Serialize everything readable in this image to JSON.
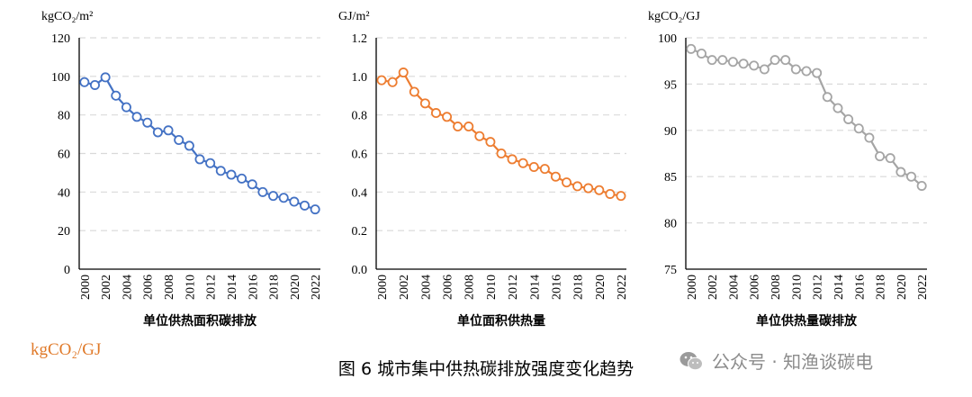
{
  "caption": "图 6 城市集中供热碳排放强度变化趋势",
  "stray_unit": "kgCO₂/GJ",
  "watermark": {
    "text": "公众号 · 知渔谈碳电",
    "icon": "wechat-icon"
  },
  "chart_data": [
    {
      "type": "line",
      "unit": "kgCO₂/m²",
      "xlabel": "单位供热面积碳排放",
      "ylim": [
        0,
        120
      ],
      "yticks": [
        "0",
        "20",
        "40",
        "60",
        "80",
        "100",
        "120"
      ],
      "categories": [
        "2000",
        "2001",
        "2002",
        "2003",
        "2004",
        "2005",
        "2006",
        "2007",
        "2008",
        "2009",
        "2010",
        "2011",
        "2012",
        "2013",
        "2014",
        "2015",
        "2016",
        "2017",
        "2018",
        "2019",
        "2020",
        "2021",
        "2022"
      ],
      "xticks": [
        "2000",
        "2002",
        "2004",
        "2006",
        "2008",
        "2010",
        "2012",
        "2014",
        "2016",
        "2018",
        "2020",
        "2022"
      ],
      "series": [
        {
          "values": [
            97,
            95.5,
            99.5,
            90,
            84,
            79,
            76,
            71,
            72,
            67,
            64,
            57,
            55,
            51,
            49,
            47,
            44,
            40,
            38,
            37,
            35,
            33,
            31
          ]
        }
      ],
      "color": "#4472c4",
      "grid": true
    },
    {
      "type": "line",
      "unit": "GJ/m²",
      "xlabel": "单位面积供热量",
      "ylim": [
        0,
        1.2
      ],
      "yticks": [
        "0.0",
        "0.2",
        "0.4",
        "0.6",
        "0.8",
        "1.0",
        "1.2"
      ],
      "categories": [
        "2000",
        "2001",
        "2002",
        "2003",
        "2004",
        "2005",
        "2006",
        "2007",
        "2008",
        "2009",
        "2010",
        "2011",
        "2012",
        "2013",
        "2014",
        "2015",
        "2016",
        "2017",
        "2018",
        "2019",
        "2020",
        "2021",
        "2022"
      ],
      "xticks": [
        "2000",
        "2002",
        "2004",
        "2006",
        "2008",
        "2010",
        "2012",
        "2014",
        "2016",
        "2018",
        "2020",
        "2022"
      ],
      "series": [
        {
          "values": [
            0.98,
            0.97,
            1.02,
            0.92,
            0.86,
            0.81,
            0.79,
            0.74,
            0.74,
            0.69,
            0.66,
            0.6,
            0.57,
            0.55,
            0.53,
            0.52,
            0.48,
            0.45,
            0.43,
            0.42,
            0.41,
            0.39,
            0.38
          ]
        }
      ],
      "color": "#ed7d31",
      "grid": true
    },
    {
      "type": "line",
      "unit": "kgCO₂/GJ",
      "xlabel": "单位供热量碳排放",
      "ylim": [
        75,
        100
      ],
      "yticks": [
        "75",
        "80",
        "85",
        "90",
        "95",
        "100"
      ],
      "categories": [
        "2000",
        "2001",
        "2002",
        "2003",
        "2004",
        "2005",
        "2006",
        "2007",
        "2008",
        "2009",
        "2010",
        "2011",
        "2012",
        "2013",
        "2014",
        "2015",
        "2016",
        "2017",
        "2018",
        "2019",
        "2020",
        "2021",
        "2022"
      ],
      "xticks": [
        "2000",
        "2002",
        "2004",
        "2006",
        "2008",
        "2010",
        "2012",
        "2014",
        "2016",
        "2018",
        "2020",
        "2022"
      ],
      "series": [
        {
          "values": [
            98.8,
            98.3,
            97.6,
            97.6,
            97.4,
            97.2,
            97,
            96.6,
            97.6,
            97.6,
            96.6,
            96.4,
            96.2,
            93.6,
            92.4,
            91.2,
            90.2,
            89.2,
            87.2,
            87,
            85.5,
            85,
            84
          ]
        }
      ],
      "color": "#a5a5a5",
      "grid": true
    }
  ]
}
